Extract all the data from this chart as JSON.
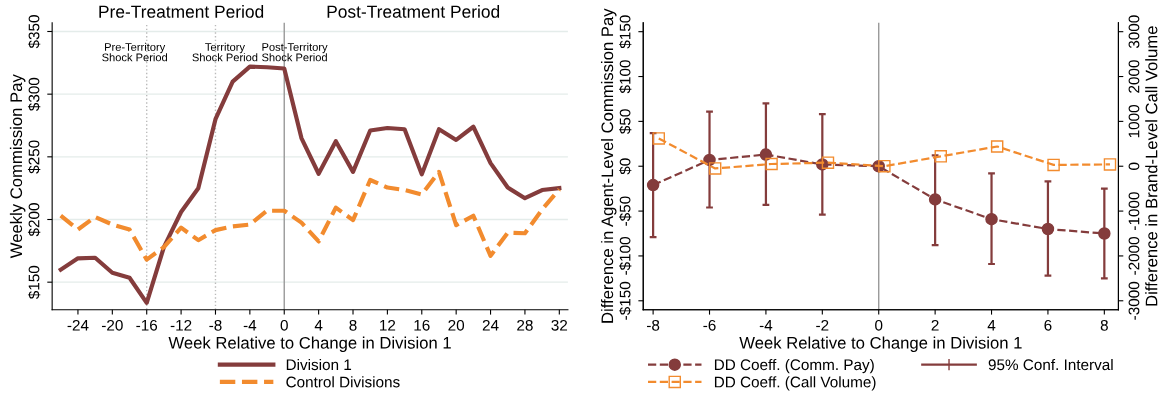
{
  "chart_data": [
    {
      "type": "line",
      "xlabel": "Week Relative to Change in Division 1",
      "ylabel": "Weekly Commission Pay",
      "x": [
        -26,
        -24,
        -22,
        -20,
        -18,
        -16,
        -14,
        -12,
        -10,
        -8,
        -6,
        -4,
        -2,
        0,
        2,
        4,
        6,
        8,
        10,
        12,
        14,
        16,
        18,
        20,
        22,
        24,
        26,
        28,
        30,
        32
      ],
      "series": [
        {
          "name": "Division 1",
          "color": "#843c3c",
          "line_style": "solid",
          "values": [
            160,
            169,
            169.5,
            157.5,
            153.5,
            133.5,
            178,
            206,
            225,
            280,
            310,
            322,
            321.5,
            320.5,
            265,
            236.5,
            262.5,
            238,
            271,
            273,
            272,
            236,
            272,
            263.5,
            274,
            245,
            225.5,
            217,
            223.5,
            225
          ]
        },
        {
          "name": "Control Divisions",
          "color": "#f28b2e",
          "line_style": "dashed",
          "values": [
            203,
            192,
            202,
            196,
            192,
            168,
            178,
            193.5,
            183.5,
            191.5,
            194.5,
            196,
            207,
            207,
            197.5,
            182.5,
            209.5,
            199.5,
            231.5,
            225.5,
            223.5,
            220,
            238,
            195.5,
            203,
            171,
            189.5,
            189,
            208,
            224
          ]
        }
      ],
      "xlim": [
        -27,
        33
      ],
      "xticks": [
        -24,
        -20,
        -16,
        -12,
        -8,
        -4,
        0,
        4,
        8,
        12,
        16,
        20,
        24,
        28,
        32
      ],
      "ylim": [
        128,
        357
      ],
      "yticks": [
        {
          "value": 150,
          "label": "$150"
        },
        {
          "value": 200,
          "label": "$200"
        },
        {
          "value": 250,
          "label": "$250"
        },
        {
          "value": 300,
          "label": "$300"
        },
        {
          "value": 350,
          "label": "$350"
        }
      ],
      "grid": "y",
      "legend": "bottom",
      "marker": "none",
      "ref_lines": [
        {
          "axis": "x",
          "value": 0,
          "color": "#999999",
          "line_style": "solid"
        },
        {
          "axis": "x",
          "value": -16,
          "color": "#bbbbbb",
          "line_style": "dotted"
        },
        {
          "axis": "x",
          "value": -8,
          "color": "#bbbbbb",
          "line_style": "dotted"
        }
      ],
      "annotations": [
        "Pre-Treatment Period",
        "Post-Treatment Period",
        "Pre-Territory\nShock Period",
        "Territory\nShock Period",
        "Post-Territory\nShock Period"
      ]
    },
    {
      "type": "line",
      "xlabel": "Week Relative to Change in Division 1",
      "ylabel": "Difference in Agent-Level Commission Pay",
      "y2label": "Difference in Brand-Level Call Volume",
      "x": [
        -8,
        -6,
        -4,
        -2,
        0,
        2,
        4,
        6,
        8
      ],
      "series": [
        {
          "name": "DD Coeff. (Comm. Pay)",
          "color": "#843c3c",
          "marker": "circle",
          "line_style": "dashed",
          "values": [
            -21,
            7,
            13,
            2,
            0,
            -37,
            -59,
            -70,
            -75
          ],
          "errors": [
            [
              -79,
              37
            ],
            [
              -46,
              61
            ],
            [
              -43,
              70
            ],
            [
              -54,
              58
            ],
            null,
            [
              -88,
              12
            ],
            [
              -109,
              -8
            ],
            [
              -122,
              -17
            ],
            [
              -125,
              -25
            ]
          ]
        },
        {
          "name": "DD Coeff. (Call Volume)",
          "color": "#f28b2e",
          "marker": "square",
          "line_style": "dashed",
          "axis": "y2",
          "x": [
            -7.8,
            -5.8,
            -3.8,
            -1.8,
            0.2,
            2.2,
            4.2,
            6.2,
            8.2
          ],
          "values": [
            620,
            -50,
            50,
            80,
            0,
            220,
            440,
            30,
            40
          ]
        }
      ],
      "annotations": [
        "95% Conf. Interval"
      ],
      "xlim": [
        -8.35,
        8.5
      ],
      "xticks": [
        -8,
        -6,
        -4,
        -2,
        0,
        2,
        4,
        6,
        8
      ],
      "ylim": [
        -160,
        160
      ],
      "yticks": [
        {
          "value": -150,
          "label": "-$150"
        },
        {
          "value": -100,
          "label": "-$100"
        },
        {
          "value": -50,
          "label": "-$50"
        },
        {
          "value": 0,
          "label": "$0"
        },
        {
          "value": 50,
          "label": "$50"
        },
        {
          "value": 100,
          "label": "$100"
        },
        {
          "value": 150,
          "label": "$150"
        }
      ],
      "y2lim": [
        -3200,
        3200
      ],
      "y2ticks": [
        -3000,
        -2000,
        -1000,
        0,
        1000,
        2000,
        3000
      ],
      "grid": false,
      "legend": "bottom",
      "ref_lines": [
        {
          "axis": "x",
          "value": 0,
          "color": "#999999",
          "line_style": "solid"
        }
      ]
    }
  ]
}
